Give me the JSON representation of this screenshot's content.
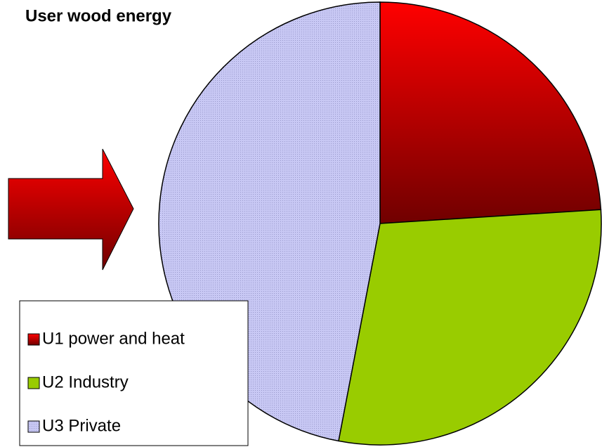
{
  "chart_data": {
    "type": "pie",
    "title": "User wood energy",
    "categories": [
      "U1 power and heat",
      "U2 Industry",
      "U3 Private"
    ],
    "values": [
      24,
      29,
      47
    ],
    "colors": [
      "#ff0000",
      "#99cc00",
      "#c8c8f4"
    ],
    "legend": "bottom-left"
  }
}
